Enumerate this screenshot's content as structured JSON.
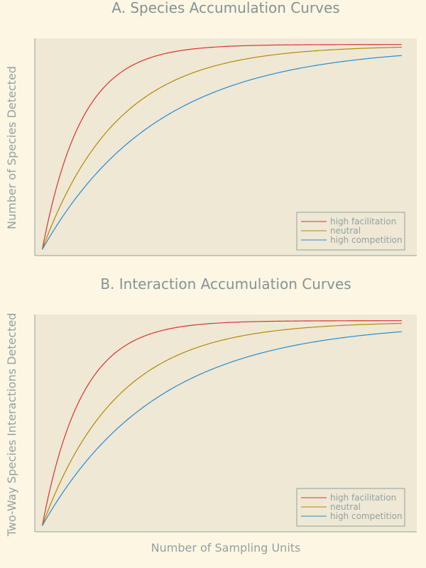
{
  "colors": {
    "background": "#fdf6e3",
    "axes_face": "#eee8d5",
    "axis_line": "#93a1a1",
    "text": "#93a1a1"
  },
  "chart_data": [
    {
      "type": "line",
      "title": "A. Species Accumulation Curves",
      "xlabel": "",
      "ylabel": "Number of Species Detected",
      "ticks_shown": false,
      "legend_position": "lower right",
      "xlim": [
        -1,
        50
      ],
      "ylim": [
        -0.03,
        1.03
      ],
      "x_range": [
        0,
        48
      ],
      "series": [
        {
          "name": "high facilitation",
          "color": "#dc322f",
          "rate": 0.19,
          "asymptote": 1.0
        },
        {
          "name": "neutral",
          "color": "#b58900",
          "rate": 0.1,
          "asymptote": 0.995
        },
        {
          "name": "high competition",
          "color": "#268bd2",
          "rate": 0.065,
          "asymptote": 0.99
        }
      ]
    },
    {
      "type": "line",
      "title": "B. Interaction Accumulation Curves",
      "xlabel": "Number of Sampling Units",
      "ylabel": "Two-Way Species Interactions Detected",
      "ticks_shown": false,
      "legend_position": "lower right",
      "xlim": [
        -1,
        50
      ],
      "ylim": [
        -0.03,
        1.03
      ],
      "x_range": [
        0,
        48
      ],
      "series": [
        {
          "name": "high facilitation",
          "color": "#dc322f",
          "rate": 0.19,
          "asymptote": 1.0
        },
        {
          "name": "neutral",
          "color": "#b58900",
          "rate": 0.1,
          "asymptote": 0.995
        },
        {
          "name": "high competition",
          "color": "#268bd2",
          "rate": 0.065,
          "asymptote": 0.99
        }
      ]
    }
  ]
}
